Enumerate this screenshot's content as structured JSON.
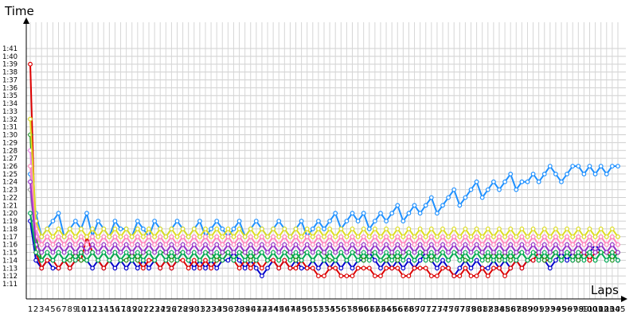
{
  "chart_data": {
    "type": "line",
    "xlabel": "Laps",
    "ylabel": "Time",
    "x_range": [
      1,
      105
    ],
    "ylim": [
      "1:11",
      "1:41"
    ],
    "grid": true,
    "legend": "none",
    "y_tick_labels": [
      "1:11",
      "1:12",
      "1:13",
      "1:14",
      "1:15",
      "1:16",
      "1:17",
      "1:18",
      "1:19",
      "1:20",
      "1:21",
      "1:22",
      "1:23",
      "1:24",
      "1:25",
      "1:26",
      "1:27",
      "1:28",
      "1:29",
      "1:30",
      "1:31",
      "1:32",
      "1:33",
      "1:34",
      "1:35",
      "1:36",
      "1:37",
      "1:38",
      "1:39",
      "1:40",
      "1:41"
    ],
    "x_tick_labels": [
      "1",
      "2",
      "3",
      "4",
      "5",
      "6",
      "7",
      "8",
      "9",
      "10",
      "11",
      "12",
      "13",
      "14",
      "15",
      "16",
      "17",
      "18",
      "19",
      "20",
      "21",
      "22",
      "23",
      "24",
      "25",
      "26",
      "27",
      "28",
      "29",
      "30",
      "31",
      "32",
      "33",
      "34",
      "35",
      "36",
      "37",
      "38",
      "39",
      "40",
      "41",
      "42",
      "43",
      "44",
      "45",
      "46",
      "47",
      "48",
      "49",
      "50",
      "51",
      "52",
      "53",
      "54",
      "55",
      "56",
      "57",
      "58",
      "59",
      "60",
      "61",
      "62",
      "63",
      "64",
      "65",
      "66",
      "67",
      "68",
      "69",
      "70",
      "71",
      "72",
      "73",
      "74",
      "75",
      "76",
      "77",
      "78",
      "79",
      "80",
      "81",
      "82",
      "83",
      "84",
      "85",
      "86",
      "87",
      "88",
      "89",
      "90",
      "91",
      "92",
      "93",
      "94",
      "95",
      "96",
      "97",
      "98",
      "99",
      "100",
      "101",
      "102",
      "103",
      "104",
      "105"
    ],
    "series": [
      {
        "color": "#0000cc",
        "values": [
          79,
          74,
          73,
          74,
          73,
          73,
          74,
          73,
          74,
          75,
          74,
          73,
          74,
          73,
          74,
          73,
          74,
          73,
          74,
          73,
          74,
          73,
          74,
          73,
          74,
          73,
          74,
          75,
          74,
          73,
          74,
          73,
          74,
          73,
          74,
          74,
          75,
          74,
          73,
          74,
          73,
          72,
          73,
          74,
          73,
          74,
          73,
          74,
          73,
          73,
          74,
          73,
          74,
          73,
          74,
          73,
          74,
          73,
          74,
          74,
          75,
          74,
          73,
          74,
          73,
          74,
          73,
          74,
          73,
          74,
          75,
          74,
          73,
          74,
          73,
          72,
          73,
          74,
          73,
          74,
          73,
          73,
          74,
          73,
          74,
          73,
          74,
          73,
          74,
          74,
          75,
          74,
          73,
          74,
          75,
          74,
          75,
          74,
          75,
          75,
          76,
          75,
          75,
          75,
          74
        ]
      },
      {
        "color": "#dd0000",
        "values": [
          99,
          75,
          73,
          74,
          74,
          73,
          74,
          73,
          74,
          74,
          77,
          75,
          74,
          73,
          74,
          75,
          74,
          74,
          75,
          74,
          73,
          74,
          74,
          73,
          74,
          73,
          74,
          74,
          73,
          74,
          73,
          74,
          73,
          74,
          74,
          75,
          74,
          73,
          74,
          73,
          74,
          73,
          74,
          74,
          73,
          74,
          73,
          73,
          74,
          73,
          73,
          72,
          72,
          73,
          73,
          72,
          72,
          72,
          73,
          73,
          73,
          72,
          72,
          73,
          73,
          73,
          72,
          72,
          73,
          73,
          73,
          72,
          72,
          73,
          73,
          72,
          72,
          73,
          72,
          72,
          73,
          72,
          73,
          73,
          72,
          73,
          74,
          73,
          74,
          74,
          75,
          74,
          74,
          75,
          74,
          75,
          74,
          75,
          75,
          74,
          75,
          75,
          75,
          75,
          75
        ]
      },
      {
        "color": "#229922",
        "values": [
          90,
          77,
          74,
          75,
          74,
          75,
          74,
          74,
          75,
          74,
          74,
          75,
          74,
          75,
          74,
          75,
          74,
          74,
          75,
          74,
          75,
          75,
          74,
          75,
          75,
          74,
          75,
          75,
          74,
          75,
          74,
          75,
          75,
          74,
          75,
          75,
          74,
          75,
          75,
          74,
          75,
          75,
          74,
          75,
          74,
          75,
          75,
          74,
          75,
          75,
          74,
          75,
          75,
          74,
          74,
          75,
          74,
          75,
          75,
          74,
          75,
          75,
          74,
          74,
          75,
          74,
          75,
          75,
          74,
          75,
          75,
          74,
          75,
          75,
          74,
          75,
          75,
          74,
          74,
          75,
          75,
          74,
          75,
          74,
          75,
          74,
          75,
          75,
          74,
          75,
          75,
          74,
          75,
          75,
          74,
          75,
          75,
          74,
          75,
          75,
          74,
          75,
          75,
          74,
          75
        ]
      },
      {
        "color": "#1e90ff",
        "values": [
          85,
          80,
          77,
          78,
          79,
          80,
          77,
          78,
          79,
          78,
          80,
          77,
          79,
          78,
          77,
          79,
          78,
          78,
          77,
          79,
          78,
          77,
          79,
          78,
          77,
          78,
          79,
          78,
          77,
          78,
          79,
          77,
          78,
          79,
          78,
          77,
          78,
          79,
          77,
          78,
          79,
          78,
          77,
          78,
          79,
          78,
          77,
          78,
          79,
          77,
          78,
          79,
          78,
          79,
          80,
          78,
          79,
          80,
          79,
          80,
          78,
          79,
          80,
          79,
          80,
          81,
          79,
          80,
          81,
          80,
          81,
          82,
          80,
          81,
          82,
          83,
          81,
          82,
          83,
          84,
          82,
          83,
          84,
          83,
          84,
          85,
          83,
          84,
          84,
          85,
          84,
          85,
          86,
          85,
          84,
          85,
          86,
          86,
          85,
          86,
          85,
          86,
          85,
          86,
          86
        ]
      },
      {
        "color": "#ee82ee",
        "values": [
          88,
          78,
          76,
          77,
          76,
          77,
          76,
          77,
          76,
          77,
          76,
          77,
          76,
          77,
          76,
          77,
          76,
          77,
          76,
          77,
          76,
          77,
          76,
          77,
          76,
          77,
          76,
          77,
          76,
          77,
          76,
          77,
          76,
          77,
          76,
          77,
          76,
          77,
          76,
          77,
          76,
          77,
          76,
          77,
          76,
          77,
          76,
          77,
          76,
          77,
          76,
          77,
          76,
          77,
          76,
          77,
          76,
          77,
          76,
          77,
          76,
          77,
          76,
          77,
          76,
          77,
          76,
          77,
          76,
          77,
          76,
          77,
          76,
          77,
          76,
          77,
          76,
          77,
          76,
          77,
          76,
          77,
          76,
          77,
          76,
          77,
          76,
          77,
          76,
          77,
          76,
          77,
          76,
          77,
          76,
          77,
          76,
          77,
          76,
          77,
          76,
          77,
          76,
          77,
          76
        ]
      },
      {
        "color": "#999999",
        "values": [
          83,
          76,
          75,
          76,
          75,
          76,
          75,
          76,
          75,
          76,
          75,
          76,
          75,
          76,
          75,
          76,
          75,
          76,
          75,
          76,
          75,
          76,
          75,
          76,
          75,
          76,
          75,
          76,
          75,
          76,
          75,
          76,
          75,
          76,
          75,
          76,
          75,
          76,
          75,
          76,
          75,
          76,
          75,
          76,
          75,
          76,
          75,
          76,
          75,
          76,
          75,
          76,
          75,
          76,
          75,
          76,
          75,
          76,
          75,
          76,
          75,
          76,
          75,
          76,
          75,
          76,
          75,
          76,
          75,
          76,
          75,
          76,
          75,
          76,
          75,
          76,
          75,
          76,
          75,
          76,
          75,
          76,
          75,
          76,
          75,
          76,
          75,
          76,
          75,
          76,
          75,
          76,
          75,
          76,
          75,
          76,
          75,
          76,
          75,
          76,
          75,
          76,
          75,
          76,
          75
        ]
      },
      {
        "color": "#dddd22",
        "values": [
          92,
          79,
          77,
          78,
          77,
          78,
          77,
          78,
          77,
          78,
          77,
          78,
          77,
          78,
          77,
          78,
          77,
          78,
          77,
          78,
          77,
          78,
          77,
          78,
          77,
          78,
          77,
          78,
          77,
          78,
          77,
          78,
          77,
          78,
          77,
          78,
          77,
          78,
          77,
          78,
          77,
          78,
          77,
          78,
          77,
          78,
          77,
          78,
          77,
          78,
          77,
          78,
          77,
          78,
          77,
          78,
          77,
          78,
          77,
          78,
          77,
          78,
          77,
          78,
          77,
          78,
          77,
          78,
          77,
          78,
          77,
          78,
          77,
          78,
          77,
          78,
          77,
          78,
          77,
          78,
          77,
          78,
          77,
          78,
          77,
          78,
          77,
          78,
          77,
          78,
          77,
          78,
          77,
          78,
          77,
          78,
          77,
          78,
          77,
          78,
          77,
          78,
          77,
          78,
          77
        ]
      },
      {
        "color": "#ff88bb",
        "values": [
          86,
          77,
          76,
          77,
          76,
          77,
          76,
          77,
          76,
          77,
          76,
          77,
          76,
          77,
          76,
          77,
          76,
          77,
          76,
          77,
          76,
          77,
          76,
          77,
          76,
          77,
          76,
          77,
          76,
          77,
          76,
          77,
          76,
          77,
          76,
          77,
          76,
          77,
          76,
          77,
          76,
          77,
          76,
          77,
          76,
          77,
          76,
          77,
          76,
          77,
          76,
          77,
          76,
          77,
          76,
          77,
          76,
          77,
          76,
          77,
          76,
          77,
          76,
          77,
          76,
          77,
          76,
          77,
          76,
          77,
          76,
          77,
          76,
          77,
          76,
          77,
          76,
          77,
          76,
          77,
          76,
          77,
          76,
          77,
          76,
          77,
          76,
          77,
          76,
          77,
          76,
          77,
          76,
          77,
          76,
          77,
          76,
          77,
          76,
          77,
          76,
          77,
          76,
          77,
          76
        ]
      },
      {
        "color": "#9933cc",
        "values": [
          84,
          76,
          75,
          76,
          75,
          76,
          75,
          76,
          75,
          76,
          75,
          76,
          75,
          76,
          75,
          76,
          75,
          76,
          75,
          76,
          75,
          76,
          75,
          76,
          75,
          76,
          75,
          76,
          75,
          76,
          75,
          76,
          75,
          76,
          75,
          76,
          75,
          76,
          75,
          76,
          75,
          76,
          75,
          76,
          75,
          76,
          75,
          76,
          75,
          76,
          75,
          76,
          75,
          76,
          75,
          76,
          75,
          76,
          75,
          76,
          75,
          76,
          75,
          76,
          75,
          76,
          75,
          76,
          75,
          76,
          75,
          76,
          75,
          76,
          75,
          76,
          75,
          76,
          75,
          76,
          75,
          76,
          75,
          76,
          75,
          76,
          75,
          76,
          75,
          76,
          75,
          76,
          75,
          76,
          75,
          76,
          75,
          76,
          75,
          76,
          75,
          76,
          75,
          76,
          75
        ]
      },
      {
        "color": "#00aa55",
        "values": [
          80,
          75,
          74,
          75,
          74,
          75,
          74,
          75,
          74,
          75,
          74,
          75,
          74,
          75,
          74,
          75,
          74,
          75,
          74,
          75,
          74,
          75,
          74,
          75,
          74,
          75,
          74,
          75,
          74,
          75,
          74,
          75,
          74,
          75,
          74,
          75,
          74,
          75,
          74,
          75,
          74,
          75,
          74,
          75,
          74,
          75,
          74,
          75,
          74,
          75,
          74,
          75,
          74,
          75,
          74,
          75,
          74,
          75,
          74,
          75,
          74,
          75,
          74,
          75,
          74,
          75,
          74,
          75,
          74,
          75,
          74,
          75,
          74,
          75,
          74,
          75,
          74,
          75,
          74,
          75,
          74,
          75,
          74,
          75,
          74,
          75,
          74,
          75,
          74,
          75,
          74,
          75,
          74,
          75,
          74,
          75,
          74,
          75,
          74,
          75,
          74,
          75,
          74,
          75,
          74
        ]
      }
    ]
  }
}
